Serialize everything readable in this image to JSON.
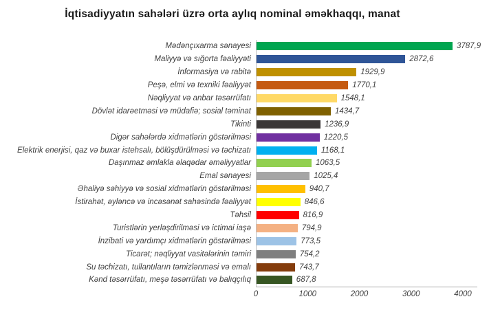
{
  "title": "İqtisadiyyatın sahələri üzrə orta aylıq nominal əməkhaqqı, manat",
  "chart_data": {
    "type": "bar",
    "orientation": "horizontal",
    "title": "İqtisadiyyatın sahələri üzrə orta aylıq nominal əməkhaqqı, manat",
    "xlabel": "",
    "ylabel": "",
    "xlim": [
      0,
      4000
    ],
    "x_ticks": [
      0,
      1000,
      2000,
      3000,
      4000
    ],
    "x_tick_labels": [
      "0",
      "1000",
      "2000",
      "3000",
      "4000"
    ],
    "grid": false,
    "legend": false,
    "axis_line_color": "#bfbfbf",
    "text_color": "#404040",
    "categories": [
      "Mədənçıxarma sənayesi",
      "Maliyyə və sığorta fəaliyyəti",
      "İnformasiya və rabitə",
      "Peşə, elmi və texniki fəaliyyət",
      "Nəqliyyat və anbar təsərrüfatı",
      "Dövlət idarəetməsi və müdafiə; sosial təminat",
      "Tikinti",
      "Digər sahələrdə xidmətlərin göstərilməsi",
      "Elektrik enerjisi, qaz və buxar istehsalı, bölüşdürülməsi və təchizatı",
      "Daşınmaz əmlakla əlaqədar əməliyyatlar",
      "Emal sənayesi",
      "Əhaliyə səhiyyə və sosial xidmətlərin göstərilməsi",
      "İstirahət, əyləncə və incəsənət sahəsində fəaliyyət",
      "Təhsil",
      "Turistlərin yerləşdirilməsi və ictimai iaşə",
      "İnzibati və yardımçı xidmətlərin göstərilməsi",
      "Ticarət; nəqliyyat vasitələrinin təmiri",
      "Su təchizatı, tullantıların təmizlənməsi və emalı",
      "Kənd təsərrüfatı, meşə təsərrüfatı və balıqçılıq"
    ],
    "values": [
      3787.9,
      2872.6,
      1929.9,
      1770.1,
      1548.1,
      1434.7,
      1236.9,
      1220.5,
      1168.1,
      1063.5,
      1025.4,
      940.7,
      846.6,
      816.9,
      794.9,
      773.5,
      754.2,
      743.7,
      687.8
    ],
    "value_labels": [
      "3787,9",
      "2872,6",
      "1929,9",
      "1770,1",
      "1548,1",
      "1434,7",
      "1236,9",
      "1220,5",
      "1168,1",
      "1063,5",
      "1025,4",
      "940,7",
      "846,6",
      "816,9",
      "794,9",
      "773,5",
      "754,2",
      "743,7",
      "687,8"
    ],
    "bar_colors": [
      "#00a550",
      "#2f5597",
      "#bf9000",
      "#c55a11",
      "#ffd966",
      "#7f6000",
      "#3b3838",
      "#7030a0",
      "#00b0f0",
      "#92d050",
      "#a6a6a6",
      "#ffc000",
      "#ffff00",
      "#ff0000",
      "#f4b183",
      "#9dc3e6",
      "#7f7f7f",
      "#843c0c",
      "#375623"
    ]
  }
}
